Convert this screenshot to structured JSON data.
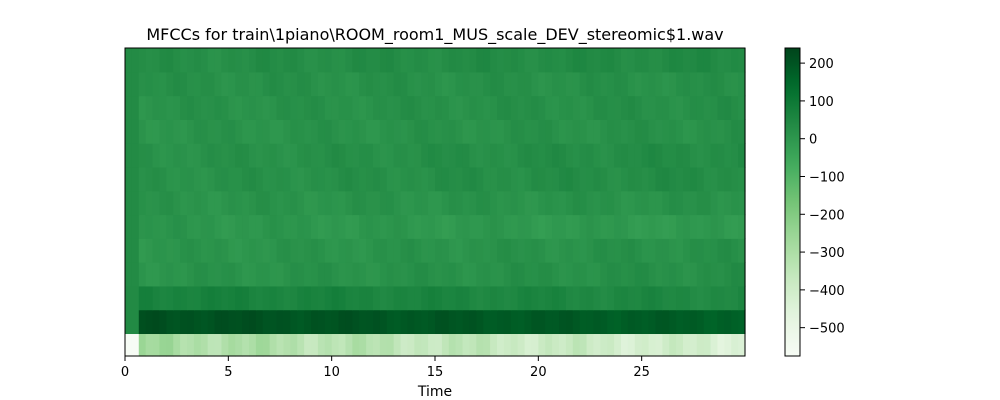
{
  "chart_data": {
    "type": "heatmap",
    "title": "MFCCs for train\\1piano\\ROOM_room1_MUS_scale_DEV_stereomic$1.wav",
    "xlabel": "Time",
    "ylabel": "",
    "xlim": [
      0,
      30
    ],
    "x_ticks": [
      0,
      5,
      10,
      15,
      20,
      25
    ],
    "y_ticks_visible": false,
    "n_coefficients": 13,
    "n_frames": 90,
    "colormap": "Greens",
    "color_range": [
      -575,
      240
    ],
    "colorbar_ticks": [
      {
        "value": 200,
        "label": "200"
      },
      {
        "value": 100,
        "label": "100"
      },
      {
        "value": 0,
        "label": "0"
      },
      {
        "value": -100,
        "label": "−100"
      },
      {
        "value": -200,
        "label": "−200"
      },
      {
        "value": -300,
        "label": "−300"
      },
      {
        "value": -400,
        "label": "−400"
      },
      {
        "value": -500,
        "label": "−500"
      }
    ],
    "coefficient_profiles": [
      {
        "coefficient": 0,
        "onset": -575,
        "mean": -280,
        "late": -430
      },
      {
        "coefficient": 1,
        "onset": 40,
        "mean": 215,
        "late": 175
      },
      {
        "coefficient": 2,
        "onset": 40,
        "mean": 70,
        "late": 45
      },
      {
        "coefficient": 3,
        "onset": 35,
        "mean": 10,
        "late": 25
      },
      {
        "coefficient": 4,
        "onset": 35,
        "mean": 5,
        "late": 20
      },
      {
        "coefficient": 5,
        "onset": 35,
        "mean": 5,
        "late": -10
      },
      {
        "coefficient": 6,
        "onset": 35,
        "mean": 10,
        "late": 15
      },
      {
        "coefficient": 7,
        "onset": 35,
        "mean": 15,
        "late": 35
      },
      {
        "coefficient": 8,
        "onset": 35,
        "mean": 15,
        "late": 35
      },
      {
        "coefficient": 9,
        "onset": 35,
        "mean": 10,
        "late": 20
      },
      {
        "coefficient": 10,
        "onset": 35,
        "mean": 15,
        "late": 25
      },
      {
        "coefficient": 11,
        "onset": 35,
        "mean": 20,
        "late": 20
      },
      {
        "coefficient": 12,
        "onset": 35,
        "mean": 25,
        "late": 40
      }
    ]
  }
}
